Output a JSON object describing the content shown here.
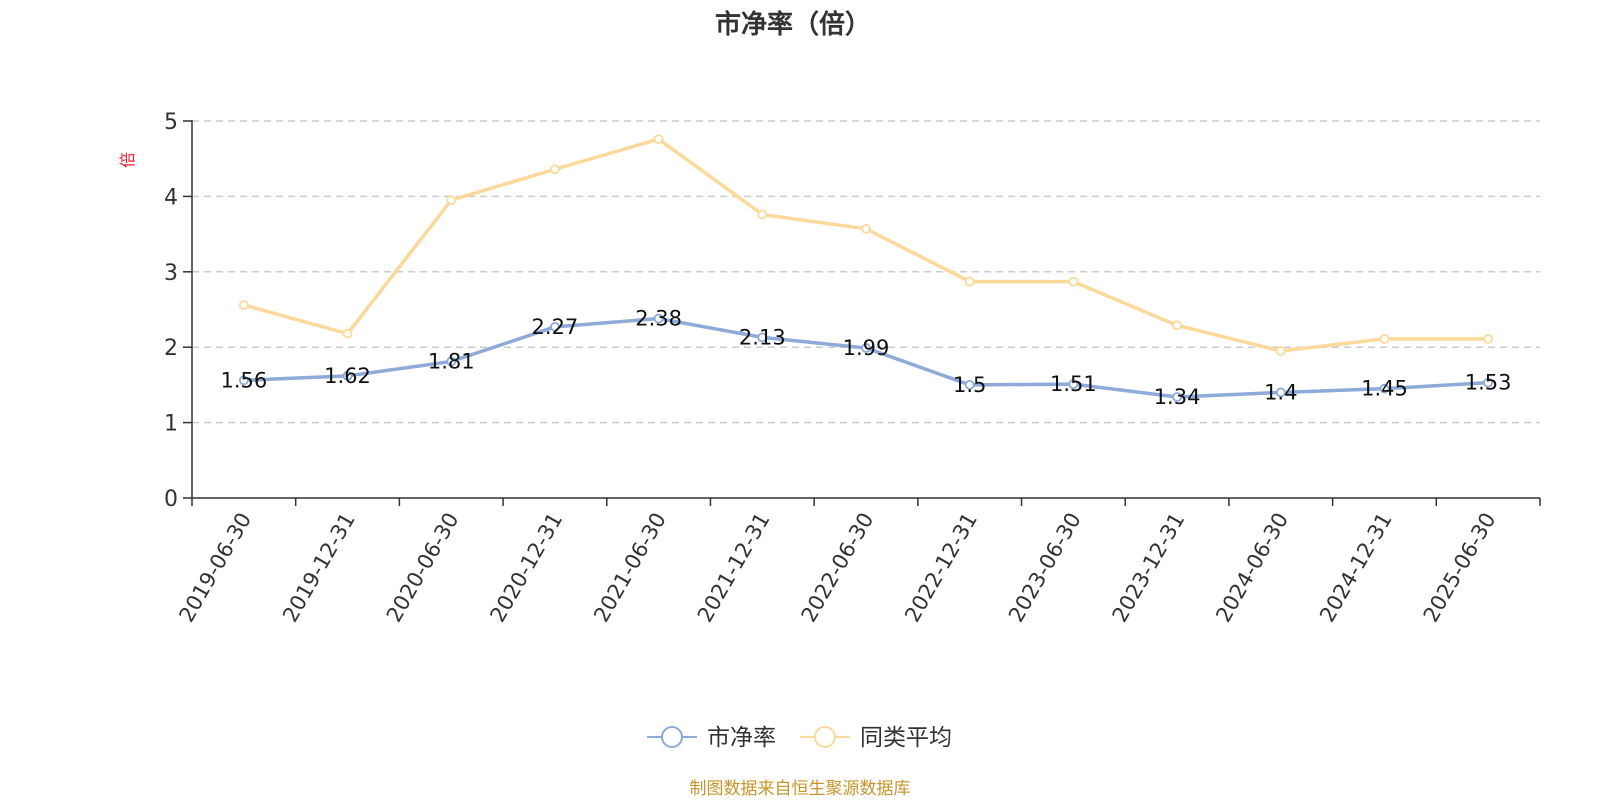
{
  "chart_data": {
    "type": "line",
    "title": "市净率（倍）",
    "ylabel": "倍",
    "xlabel": "",
    "categories": [
      "2019-06-30",
      "2019-12-31",
      "2020-06-30",
      "2020-12-31",
      "2021-06-30",
      "2021-12-31",
      "2022-06-30",
      "2022-12-31",
      "2023-06-30",
      "2023-12-31",
      "2024-06-30",
      "2024-12-31",
      "2025-06-30"
    ],
    "series": [
      {
        "name": "市净率",
        "color": "#8eaad8",
        "values": [
          1.56,
          1.62,
          1.81,
          2.27,
          2.38,
          2.13,
          1.99,
          1.5,
          1.51,
          1.34,
          1.4,
          1.45,
          1.53
        ],
        "labels": [
          "1.56",
          "1.62",
          "1.81",
          "2.27",
          "2.38",
          "2.13",
          "1.99",
          "1.5",
          "1.51",
          "1.34",
          "1.4",
          "1.45",
          "1.53"
        ],
        "show_labels": true
      },
      {
        "name": "同类平均",
        "color": "#fbd99a",
        "values": [
          2.56,
          2.18,
          3.95,
          4.36,
          4.76,
          3.76,
          3.57,
          2.87,
          2.87,
          2.29,
          1.95,
          2.11,
          2.11
        ],
        "show_labels": false
      }
    ],
    "ylim": [
      0,
      5
    ],
    "yticks": [
      "0",
      "1",
      "2",
      "3",
      "4",
      "5"
    ],
    "grid": true,
    "legend_position": "bottom-center"
  },
  "colors": {
    "ylabel": "#e8202a",
    "source": "#c8952a",
    "axis": "#333333",
    "grid": "#cccccc"
  },
  "source_text": "制图数据来自恒生聚源数据库"
}
